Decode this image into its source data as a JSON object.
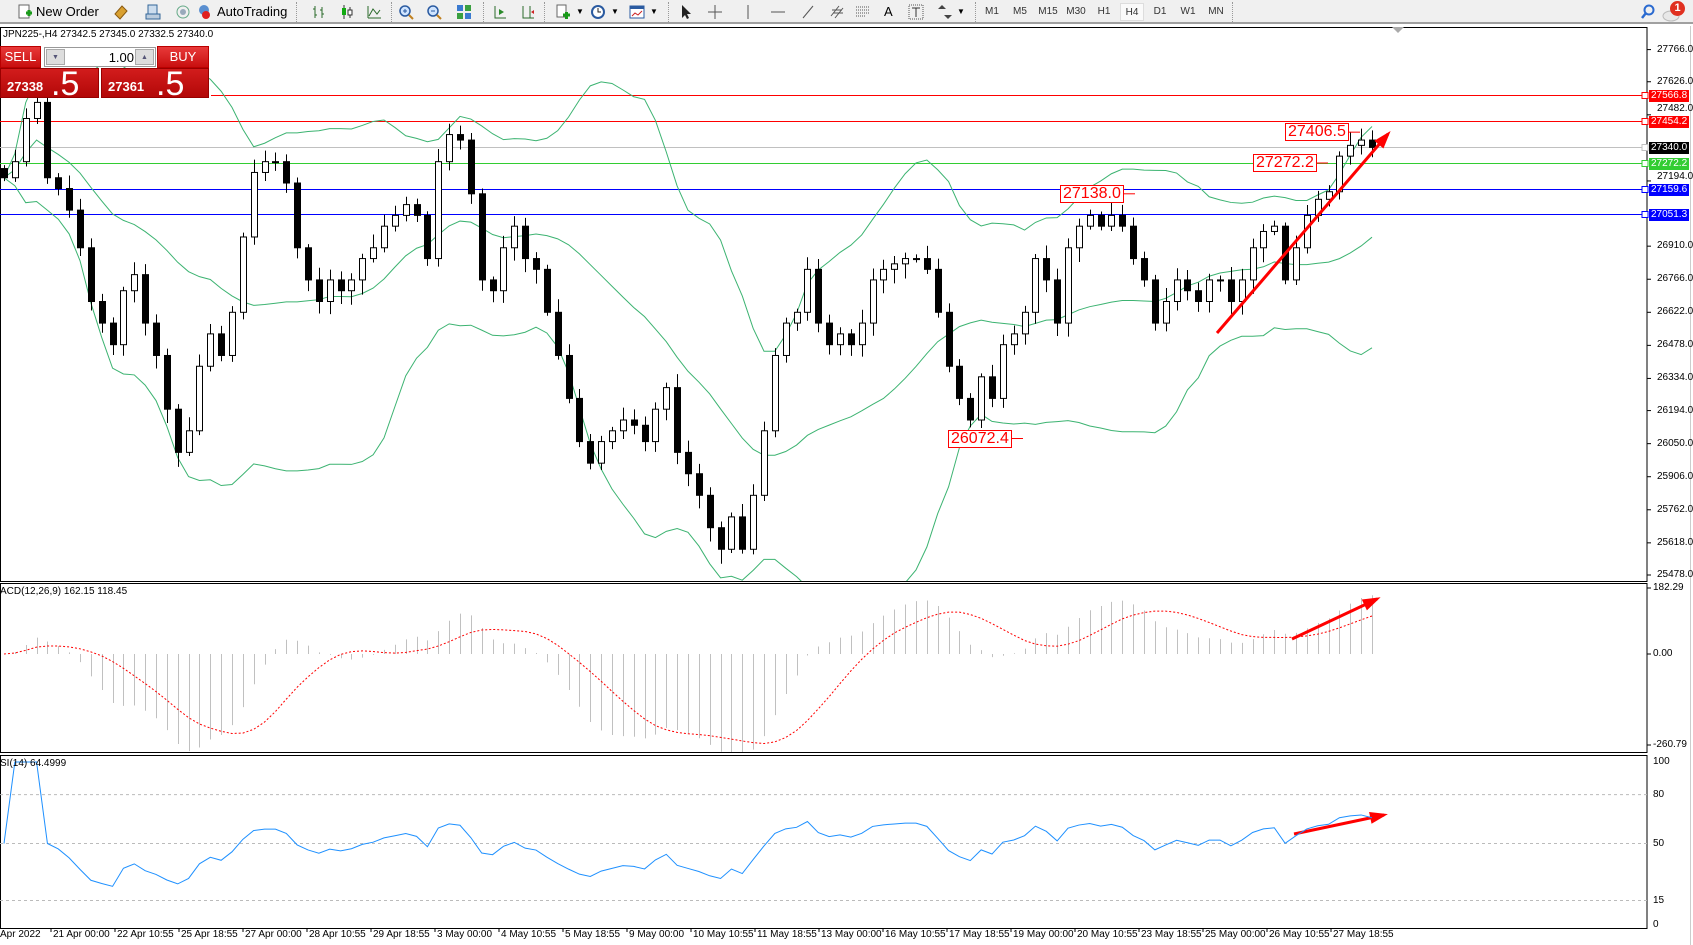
{
  "toolbar": {
    "new_order": "New Order",
    "auto_trading": "AutoTrading",
    "timeframes": [
      "M1",
      "M5",
      "M15",
      "M30",
      "H1",
      "H4",
      "D1",
      "W1",
      "MN"
    ],
    "active_timeframe": "H4",
    "notification_count": "1"
  },
  "chart_info": "JPN225-,H4  27342.5 27345.0 27332.5 27340.0",
  "trade_panel": {
    "sell_label": "SELL",
    "buy_label": "BUY",
    "lot": "1.00",
    "sell_price_main": "27338",
    "sell_price_frac": ".5",
    "buy_price_main": "27361",
    "buy_price_frac": ".5"
  },
  "chart_data": {
    "type": "candlestick",
    "symbol": "JPN225-",
    "timeframe": "H4",
    "closes": [
      27208,
      27278,
      27466,
      27536,
      27208,
      27161,
      27067,
      26903,
      26669,
      26575,
      26481,
      26716,
      26786,
      26575,
      26434,
      26200,
      26012,
      26106,
      26387,
      26528,
      26434,
      26622,
      26950,
      27231,
      27278,
      27278,
      27185,
      26903,
      26763,
      26669,
      26763,
      26716,
      26763,
      26856,
      26903,
      26997,
      27044,
      27091,
      27044,
      26856,
      27278,
      27396,
      27372,
      27138,
      26763,
      26716,
      26903,
      26997,
      26856,
      26809,
      26622,
      26434,
      26247,
      26059,
      25965,
      26059,
      26106,
      26153,
      26130,
      26059,
      26200,
      26294,
      26012,
      25919,
      25825,
      25684,
      25590,
      25731,
      25590,
      25825,
      26106,
      26434,
      26575,
      26622,
      26809,
      26575,
      26481,
      26528,
      26481,
      26575,
      26763,
      26809,
      26833,
      26856,
      26856,
      26809,
      26622,
      26387,
      26247,
      26153,
      26341,
      26247,
      26481,
      26528,
      26622,
      26856,
      26763,
      26575,
      26903,
      26997,
      27044,
      26997,
      27044,
      26997,
      26856,
      26763,
      26575,
      26669,
      26763,
      26716,
      26669,
      26763,
      26763,
      26669,
      26763,
      26903,
      26974,
      26997,
      26763,
      26903,
      27044,
      27114,
      27147,
      27302,
      27349,
      27372,
      27340
    ],
    "price_axis": {
      "min": 25478,
      "max": 27766,
      "ticks": [
        "27766.0",
        "27626.0",
        "27482.0",
        "27194.0",
        "26910.0",
        "26766.0",
        "26622.0",
        "26478.0",
        "26334.0",
        "26194.0",
        "26050.0",
        "25906.0",
        "25762.0",
        "25618.0",
        "25478.0"
      ]
    },
    "horizontal_lines": [
      {
        "price": 27566.8,
        "label": "27566.8",
        "color": "#ff0000"
      },
      {
        "price": 27454.2,
        "label": "27454.2",
        "color": "#ff0000"
      },
      {
        "price": 27340.0,
        "label": "27340.0",
        "color": "#000000",
        "line_color": "#c0c0c0"
      },
      {
        "price": 27272.2,
        "label": "27272.2",
        "color": "#32cd32"
      },
      {
        "price": 27159.6,
        "label": "27159.6",
        "color": "#0000ff"
      },
      {
        "price": 27051.3,
        "label": "27051.3",
        "color": "#0000ff"
      }
    ],
    "annotations": [
      "27406.5",
      "27272.2",
      "27138.0",
      "26072.4"
    ],
    "indicators": {
      "bollinger_color": "#3cb371",
      "macd": {
        "label": "ACD(12,26,9) 162.15 118.45",
        "axis": [
          "182.29",
          "0.00",
          "-260.79"
        ],
        "max": 182.29,
        "min": -260.79,
        "histogram_color": "#c0c0c0",
        "signal_color": "#ff0000"
      },
      "rsi": {
        "label": "SI(14) 64.4999",
        "axis": [
          "100",
          "80",
          "50",
          "15",
          "0"
        ],
        "levels": [
          80,
          50,
          15
        ],
        "color": "#1e90ff"
      }
    },
    "time_labels": [
      "Apr 2022",
      "21 Apr 00:00",
      "22 Apr 10:55",
      "25 Apr 18:55",
      "27 Apr 00:00",
      "28 Apr 10:55",
      "29 Apr 18:55",
      "3 May 00:00",
      "4 May 10:55",
      "5 May 18:55",
      "9 May 00:00",
      "10 May 10:55",
      "11 May 18:55",
      "13 May 00:00",
      "16 May 10:55",
      "17 May 18:55",
      "19 May 00:00",
      "20 May 10:55",
      "23 May 18:55",
      "25 May 00:00",
      "26 May 10:55",
      "27 May 18:55"
    ],
    "trend_arrow_color": "#ff0000"
  }
}
